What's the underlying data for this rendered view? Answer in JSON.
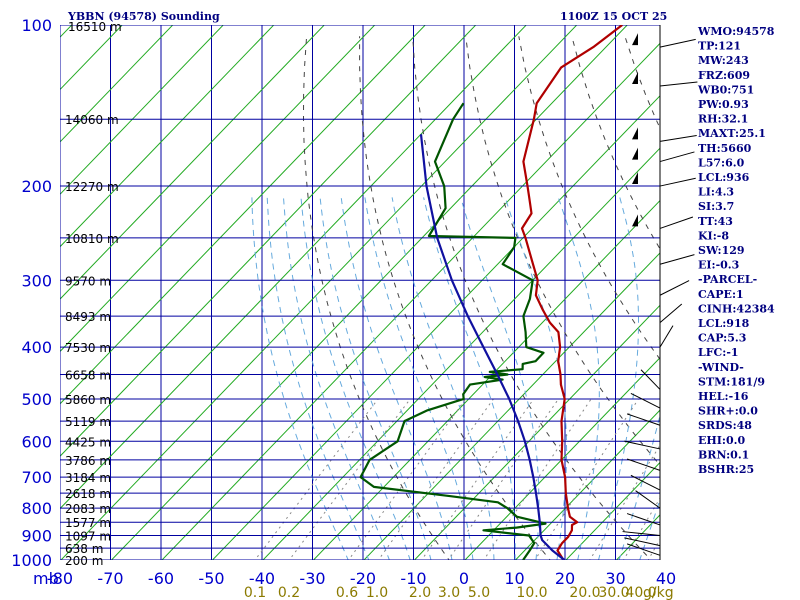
{
  "header": {
    "left": "YBBN (94578) Sounding",
    "right": "1100Z 15 OCT 25"
  },
  "axis": {
    "mb_label": "mb",
    "kg_label": "g/kg"
  },
  "indices": [
    "WMO:94578",
    "TP:121",
    "MW:243",
    "FRZ:609",
    "WB0:751",
    "PW:0.93",
    "RH:32.1",
    "MAXT:25.1",
    "TH:5660",
    "L57:6.0",
    "LCL:936",
    "LI:4.3",
    "SI:3.7",
    "TT:43",
    "KI:-8",
    "SW:129",
    "EI:-0.3",
    "-PARCEL-",
    "CAPE:1",
    "CINH:42384",
    "LCL:918",
    "CAP:5.3",
    "LFC:-1",
    "-WIND-",
    "STM:181/9",
    "HEL:-16",
    "SHR+:0.0",
    "SRDS:48",
    "EHI:0.0",
    "BRN:0.1",
    "BSHR:25"
  ],
  "chart_data": {
    "type": "skew-t",
    "title": "YBBN (94578) Sounding",
    "xlabel": "",
    "ylabel": "mb",
    "pressure_ticks": [
      100,
      200,
      300,
      400,
      500,
      600,
      700,
      800,
      900,
      1000
    ],
    "pressure_range": [
      100,
      1000
    ],
    "temperature_ticks": [
      -80,
      -70,
      -60,
      -50,
      -40,
      -30,
      -20,
      -10,
      0,
      10,
      20,
      30,
      40
    ],
    "temperature_tick_labels": [
      "-80",
      "-70",
      "-60",
      "-50",
      "-40",
      "-30",
      "-20",
      "-10",
      "0",
      "10",
      "20",
      "30",
      "40"
    ],
    "mixing_ratio_ticks": [
      {
        "label": "0.1",
        "value": 0.1
      },
      {
        "label": "0.2",
        "value": 0.2
      },
      {
        "label": "0.6",
        "value": 0.6
      },
      {
        "label": "1.0",
        "value": 1.0
      },
      {
        "label": "2.0",
        "value": 2.0
      },
      {
        "label": "3.0",
        "value": 3.0
      },
      {
        "label": "5.0",
        "value": 5.0
      },
      {
        "label": "10.0",
        "value": 10.0
      },
      {
        "label": "20.0",
        "value": 20.0
      },
      {
        "label": "30.0",
        "value": 30.0
      },
      {
        "label": "40.0",
        "value": 40.0
      }
    ],
    "height_labels": [
      {
        "p": 100,
        "label": "16510 m"
      },
      {
        "p": 150,
        "label": "14060 m"
      },
      {
        "p": 200,
        "label": "12270 m"
      },
      {
        "p": 250,
        "label": "10810 m"
      },
      {
        "p": 300,
        "label": "9570 m"
      },
      {
        "p": 350,
        "label": "8493 m"
      },
      {
        "p": 400,
        "label": "7530 m"
      },
      {
        "p": 450,
        "label": "6658 m"
      },
      {
        "p": 500,
        "label": "5860 m"
      },
      {
        "p": 550,
        "label": "5119 m"
      },
      {
        "p": 600,
        "label": "4425 m"
      },
      {
        "p": 650,
        "label": "3786 m"
      },
      {
        "p": 700,
        "label": "3184 m"
      },
      {
        "p": 750,
        "label": "2618 m"
      },
      {
        "p": 800,
        "label": "2083 m"
      },
      {
        "p": 850,
        "label": "1577 m"
      },
      {
        "p": 900,
        "label": "1097 m"
      },
      {
        "p": 950,
        "label": "638 m"
      },
      {
        "p": 1000,
        "label": "200 m"
      }
    ],
    "series": [
      {
        "name": "temperature",
        "color": "#b00000",
        "points": [
          {
            "p": 1013,
            "t": 21.0
          },
          {
            "p": 1000,
            "t": 19.5
          },
          {
            "p": 960,
            "t": 16.5
          },
          {
            "p": 930,
            "t": 16.0
          },
          {
            "p": 905,
            "t": 16.0
          },
          {
            "p": 880,
            "t": 15.5
          },
          {
            "p": 860,
            "t": 14.5
          },
          {
            "p": 850,
            "t": 15.0
          },
          {
            "p": 830,
            "t": 12.5
          },
          {
            "p": 800,
            "t": 10.5
          },
          {
            "p": 750,
            "t": 7.2
          },
          {
            "p": 700,
            "t": 4.0
          },
          {
            "p": 650,
            "t": 0.0
          },
          {
            "p": 600,
            "t": -3.4
          },
          {
            "p": 550,
            "t": -7.4
          },
          {
            "p": 500,
            "t": -11.0
          },
          {
            "p": 470,
            "t": -14.5
          },
          {
            "p": 450,
            "t": -16.5
          },
          {
            "p": 425,
            "t": -19.5
          },
          {
            "p": 400,
            "t": -21.8
          },
          {
            "p": 375,
            "t": -25.0
          },
          {
            "p": 360,
            "t": -28.5
          },
          {
            "p": 340,
            "t": -32.5
          },
          {
            "p": 320,
            "t": -36.5
          },
          {
            "p": 300,
            "t": -39.0
          },
          {
            "p": 280,
            "t": -43.0
          },
          {
            "p": 250,
            "t": -49.5
          },
          {
            "p": 240,
            "t": -52.0
          },
          {
            "p": 225,
            "t": -53.0
          },
          {
            "p": 210,
            "t": -56.5
          },
          {
            "p": 200,
            "t": -59.0
          },
          {
            "p": 180,
            "t": -64.5
          },
          {
            "p": 150,
            "t": -70.5
          },
          {
            "p": 140,
            "t": -73.0
          },
          {
            "p": 120,
            "t": -75.0
          },
          {
            "p": 110,
            "t": -72.5
          },
          {
            "p": 100,
            "t": -71.0
          }
        ]
      },
      {
        "name": "dewpoint",
        "color": "#005500",
        "points": [
          {
            "p": 1000,
            "t": 11.5
          },
          {
            "p": 960,
            "t": 11.0
          },
          {
            "p": 930,
            "t": 10.5
          },
          {
            "p": 900,
            "t": 8.0
          },
          {
            "p": 880,
            "t": -2.0
          },
          {
            "p": 870,
            "t": 4.0
          },
          {
            "p": 855,
            "t": 9.0
          },
          {
            "p": 830,
            "t": 2.0
          },
          {
            "p": 800,
            "t": -1.5
          },
          {
            "p": 780,
            "t": -4.5
          },
          {
            "p": 760,
            "t": -15.0
          },
          {
            "p": 730,
            "t": -32.0
          },
          {
            "p": 700,
            "t": -36.5
          },
          {
            "p": 650,
            "t": -38.0
          },
          {
            "p": 600,
            "t": -36.0
          },
          {
            "p": 550,
            "t": -38.5
          },
          {
            "p": 525,
            "t": -36.0
          },
          {
            "p": 500,
            "t": -31.0
          },
          {
            "p": 490,
            "t": -32.0
          },
          {
            "p": 470,
            "t": -32.5
          },
          {
            "p": 460,
            "t": -27.0
          },
          {
            "p": 455,
            "t": -31.0
          },
          {
            "p": 450,
            "t": -27.0
          },
          {
            "p": 445,
            "t": -31.0
          },
          {
            "p": 440,
            "t": -25.0
          },
          {
            "p": 430,
            "t": -26.0
          },
          {
            "p": 425,
            "t": -24.0
          },
          {
            "p": 410,
            "t": -24.0
          },
          {
            "p": 400,
            "t": -28.5
          },
          {
            "p": 375,
            "t": -31.5
          },
          {
            "p": 350,
            "t": -35.0
          },
          {
            "p": 325,
            "t": -37.0
          },
          {
            "p": 300,
            "t": -40.0
          },
          {
            "p": 280,
            "t": -49.0
          },
          {
            "p": 260,
            "t": -50.0
          },
          {
            "p": 250,
            "t": -51.5
          },
          {
            "p": 248,
            "t": -69.0
          },
          {
            "p": 220,
            "t": -71.0
          },
          {
            "p": 200,
            "t": -75.5
          },
          {
            "p": 180,
            "t": -82.0
          },
          {
            "p": 150,
            "t": -86.5
          },
          {
            "p": 140,
            "t": -87.5
          }
        ]
      },
      {
        "name": "parcel",
        "color": "#1010a0",
        "points": [
          {
            "p": 1013,
            "t": 21.0
          },
          {
            "p": 960,
            "t": 15.5
          },
          {
            "p": 918,
            "t": 11.5
          },
          {
            "p": 900,
            "t": 10.3
          },
          {
            "p": 850,
            "t": 7.6
          },
          {
            "p": 800,
            "t": 4.6
          },
          {
            "p": 750,
            "t": 1.3
          },
          {
            "p": 700,
            "t": -2.3
          },
          {
            "p": 650,
            "t": -6.3
          },
          {
            "p": 600,
            "t": -10.8
          },
          {
            "p": 550,
            "t": -16.0
          },
          {
            "p": 500,
            "t": -22.0
          },
          {
            "p": 450,
            "t": -29.0
          },
          {
            "p": 400,
            "t": -37.0
          },
          {
            "p": 350,
            "t": -46.0
          },
          {
            "p": 300,
            "t": -56.0
          },
          {
            "p": 250,
            "t": -67.0
          },
          {
            "p": 200,
            "t": -79.0
          },
          {
            "p": 160,
            "t": -90.0
          }
        ]
      }
    ],
    "grid": true
  }
}
